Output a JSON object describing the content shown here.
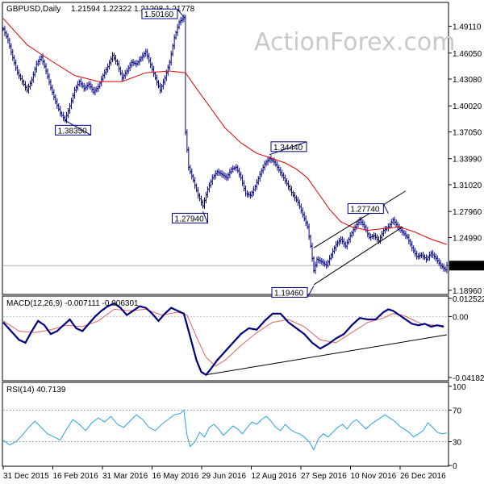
{
  "chart_data": [
    {
      "type": "ohlc",
      "panel": "price",
      "symbol": "GBPUSD,Daily",
      "ohlc_readout": [
        "1.21594",
        "1.22322",
        "1.21208",
        "1.21778"
      ],
      "watermark": "ActionForex.com",
      "ylim": [
        1.1858,
        1.5174
      ],
      "y_ticks": [
        "1.49110",
        "1.46050",
        "1.43080",
        "1.40020",
        "1.37050",
        "1.33990",
        "1.31020",
        "1.27960",
        "1.24990",
        "1.21778",
        "1.18960"
      ],
      "last_price": "1.21778",
      "x_ticks": [
        "31 Dec 2015",
        "16 Feb 2016",
        "31 Mar 2016",
        "16 May 2016",
        "29 Jun 2016",
        "12 Aug 2016",
        "27 Sep 2016",
        "10 Nov 2016",
        "26 Dec 2016"
      ],
      "close_path": [
        [
          0,
          1.488
        ],
        [
          3,
          1.475
        ],
        [
          6,
          1.455
        ],
        [
          9,
          1.438
        ],
        [
          12,
          1.428
        ],
        [
          15,
          1.418
        ],
        [
          18,
          1.43
        ],
        [
          21,
          1.448
        ],
        [
          24,
          1.456
        ],
        [
          27,
          1.44
        ],
        [
          30,
          1.421
        ],
        [
          33,
          1.405
        ],
        [
          36,
          1.392
        ],
        [
          39,
          1.384
        ],
        [
          42,
          1.4
        ],
        [
          45,
          1.418
        ],
        [
          48,
          1.428
        ],
        [
          51,
          1.42
        ],
        [
          54,
          1.425
        ],
        [
          57,
          1.416
        ],
        [
          60,
          1.422
        ],
        [
          63,
          1.435
        ],
        [
          66,
          1.445
        ],
        [
          69,
          1.458
        ],
        [
          72,
          1.448
        ],
        [
          75,
          1.432
        ],
        [
          78,
          1.44
        ],
        [
          81,
          1.45
        ],
        [
          84,
          1.448
        ],
        [
          87,
          1.455
        ],
        [
          90,
          1.462
        ],
        [
          93,
          1.447
        ],
        [
          96,
          1.432
        ],
        [
          99,
          1.418
        ],
        [
          102,
          1.432
        ],
        [
          105,
          1.45
        ],
        [
          108,
          1.478
        ],
        [
          111,
          1.496
        ],
        [
          114,
          1.501
        ],
        [
          115,
          1.37
        ],
        [
          117,
          1.33
        ],
        [
          120,
          1.315
        ],
        [
          123,
          1.298
        ],
        [
          126,
          1.286
        ],
        [
          129,
          1.305
        ],
        [
          132,
          1.318
        ],
        [
          135,
          1.325
        ],
        [
          138,
          1.322
        ],
        [
          141,
          1.318
        ],
        [
          144,
          1.328
        ],
        [
          147,
          1.33
        ],
        [
          150,
          1.318
        ],
        [
          153,
          1.3
        ],
        [
          156,
          1.298
        ],
        [
          159,
          1.308
        ],
        [
          162,
          1.322
        ],
        [
          165,
          1.334
        ],
        [
          168,
          1.34
        ],
        [
          171,
          1.336
        ],
        [
          174,
          1.327
        ],
        [
          177,
          1.318
        ],
        [
          180,
          1.308
        ],
        [
          183,
          1.298
        ],
        [
          186,
          1.29
        ],
        [
          189,
          1.276
        ],
        [
          192,
          1.262
        ],
        [
          194,
          1.24
        ],
        [
          196,
          1.212
        ],
        [
          198,
          1.225
        ],
        [
          201,
          1.222
        ],
        [
          204,
          1.218
        ],
        [
          207,
          1.23
        ],
        [
          210,
          1.242
        ],
        [
          213,
          1.248
        ],
        [
          216,
          1.24
        ],
        [
          219,
          1.252
        ],
        [
          222,
          1.262
        ],
        [
          225,
          1.27
        ],
        [
          228,
          1.262
        ],
        [
          231,
          1.25
        ],
        [
          234,
          1.252
        ],
        [
          237,
          1.246
        ],
        [
          240,
          1.258
        ],
        [
          243,
          1.262
        ],
        [
          246,
          1.27
        ],
        [
          249,
          1.262
        ],
        [
          252,
          1.256
        ],
        [
          255,
          1.25
        ],
        [
          258,
          1.238
        ],
        [
          261,
          1.228
        ],
        [
          264,
          1.23
        ],
        [
          267,
          1.225
        ],
        [
          270,
          1.232
        ],
        [
          273,
          1.226
        ],
        [
          276,
          1.218
        ],
        [
          279,
          1.213
        ],
        [
          280,
          1.218
        ]
      ],
      "ma_path": [
        [
          0,
          1.5
        ],
        [
          15,
          1.47
        ],
        [
          30,
          1.452
        ],
        [
          45,
          1.435
        ],
        [
          60,
          1.428
        ],
        [
          75,
          1.428
        ],
        [
          90,
          1.438
        ],
        [
          105,
          1.44
        ],
        [
          115,
          1.438
        ],
        [
          122,
          1.42
        ],
        [
          130,
          1.4
        ],
        [
          140,
          1.375
        ],
        [
          150,
          1.358
        ],
        [
          160,
          1.346
        ],
        [
          170,
          1.34
        ],
        [
          178,
          1.335
        ],
        [
          185,
          1.328
        ],
        [
          192,
          1.318
        ],
        [
          199,
          1.3
        ],
        [
          206,
          1.282
        ],
        [
          213,
          1.268
        ],
        [
          220,
          1.262
        ],
        [
          230,
          1.258
        ],
        [
          240,
          1.26
        ],
        [
          250,
          1.262
        ],
        [
          260,
          1.256
        ],
        [
          270,
          1.248
        ],
        [
          280,
          1.242
        ]
      ],
      "annotations": [
        {
          "text": "1.50160",
          "x": 114,
          "y": 1.5016
        },
        {
          "text": "1.38350",
          "x": 39,
          "y": 1.3835
        },
        {
          "text": "1.34440",
          "x": 168,
          "y": 1.3444
        },
        {
          "text": "1.27940",
          "x": 126,
          "y": 1.2794
        },
        {
          "text": "1.27740",
          "x": 243,
          "y": 1.2774
        },
        {
          "text": "1.19460",
          "x": 196,
          "y": 1.1946
        }
      ],
      "channel_upper": [
        [
          196,
          1.238
        ],
        [
          254,
          1.303
        ]
      ],
      "channel_lower": [
        [
          196,
          1.196
        ],
        [
          252,
          1.262
        ]
      ]
    },
    {
      "type": "line",
      "panel": "macd",
      "label": "MACD(12,26,9) -0.007111 -0.006301",
      "ylim": [
        -0.0435,
        0.0135
      ],
      "y_ticks": [
        "0.012522",
        "0.00",
        "-0.041823"
      ],
      "macd_path": [
        [
          0,
          -0.004
        ],
        [
          5,
          -0.01
        ],
        [
          10,
          -0.016
        ],
        [
          14,
          -0.018
        ],
        [
          18,
          -0.01
        ],
        [
          22,
          -0.003
        ],
        [
          26,
          -0.006
        ],
        [
          30,
          -0.012
        ],
        [
          34,
          -0.01
        ],
        [
          38,
          -0.006
        ],
        [
          42,
          -0.002
        ],
        [
          46,
          -0.008
        ],
        [
          50,
          -0.01
        ],
        [
          54,
          -0.005
        ],
        [
          58,
          0.0
        ],
        [
          62,
          0.004
        ],
        [
          66,
          0.007
        ],
        [
          70,
          0.009
        ],
        [
          74,
          0.006
        ],
        [
          78,
          0.001
        ],
        [
          82,
          0.004
        ],
        [
          86,
          0.007
        ],
        [
          90,
          0.006
        ],
        [
          94,
          0.002
        ],
        [
          98,
          -0.003
        ],
        [
          102,
          0.002
        ],
        [
          106,
          0.006
        ],
        [
          110,
          0.004
        ],
        [
          114,
          0.002
        ],
        [
          116,
          -0.006
        ],
        [
          119,
          -0.018
        ],
        [
          122,
          -0.03
        ],
        [
          125,
          -0.038
        ],
        [
          128,
          -0.04
        ],
        [
          131,
          -0.036
        ],
        [
          135,
          -0.03
        ],
        [
          140,
          -0.024
        ],
        [
          145,
          -0.018
        ],
        [
          150,
          -0.012
        ],
        [
          155,
          -0.008
        ],
        [
          160,
          -0.009
        ],
        [
          165,
          -0.003
        ],
        [
          170,
          0.002
        ],
        [
          175,
          0.002
        ],
        [
          180,
          -0.004
        ],
        [
          185,
          -0.008
        ],
        [
          190,
          -0.012
        ],
        [
          195,
          -0.018
        ],
        [
          200,
          -0.022
        ],
        [
          205,
          -0.019
        ],
        [
          210,
          -0.015
        ],
        [
          215,
          -0.012
        ],
        [
          220,
          -0.006
        ],
        [
          225,
          -0.001
        ],
        [
          230,
          -0.002
        ],
        [
          235,
          -0.002
        ],
        [
          240,
          0.003
        ],
        [
          243,
          0.005
        ],
        [
          246,
          0.004
        ],
        [
          250,
          0.001
        ],
        [
          254,
          -0.002
        ],
        [
          258,
          -0.005
        ],
        [
          262,
          -0.006
        ],
        [
          266,
          -0.005
        ],
        [
          270,
          -0.007
        ],
        [
          274,
          -0.006
        ],
        [
          278,
          -0.007
        ]
      ],
      "signal_path": [
        [
          0,
          -0.003
        ],
        [
          10,
          -0.01
        ],
        [
          20,
          -0.011
        ],
        [
          30,
          -0.009
        ],
        [
          40,
          -0.006
        ],
        [
          50,
          -0.007
        ],
        [
          60,
          -0.003
        ],
        [
          70,
          0.005
        ],
        [
          80,
          0.004
        ],
        [
          90,
          0.005
        ],
        [
          100,
          0.001
        ],
        [
          110,
          0.003
        ],
        [
          116,
          0.001
        ],
        [
          122,
          -0.014
        ],
        [
          128,
          -0.028
        ],
        [
          134,
          -0.034
        ],
        [
          140,
          -0.03
        ],
        [
          150,
          -0.02
        ],
        [
          160,
          -0.011
        ],
        [
          170,
          -0.004
        ],
        [
          180,
          -0.002
        ],
        [
          190,
          -0.007
        ],
        [
          200,
          -0.016
        ],
        [
          210,
          -0.018
        ],
        [
          220,
          -0.011
        ],
        [
          230,
          -0.004
        ],
        [
          240,
          -0.001
        ],
        [
          246,
          0.002
        ],
        [
          252,
          0.001
        ],
        [
          258,
          -0.002
        ],
        [
          264,
          -0.005
        ],
        [
          272,
          -0.006
        ],
        [
          278,
          -0.0063
        ]
      ],
      "trendline": [
        [
          128,
          -0.04
        ],
        [
          280,
          -0.0125
        ]
      ]
    },
    {
      "type": "line",
      "panel": "rsi",
      "label": "RSI(14) 40.7139",
      "ylim": [
        0,
        104
      ],
      "y_ticks": [
        "100",
        "70",
        "30",
        "0"
      ],
      "levels": [
        70,
        30
      ],
      "rsi_path": [
        [
          0,
          32
        ],
        [
          4,
          26
        ],
        [
          8,
          30
        ],
        [
          12,
          38
        ],
        [
          16,
          48
        ],
        [
          20,
          56
        ],
        [
          24,
          48
        ],
        [
          28,
          40
        ],
        [
          32,
          36
        ],
        [
          36,
          32
        ],
        [
          40,
          46
        ],
        [
          44,
          58
        ],
        [
          48,
          52
        ],
        [
          52,
          44
        ],
        [
          56,
          54
        ],
        [
          60,
          60
        ],
        [
          64,
          55
        ],
        [
          68,
          62
        ],
        [
          72,
          52
        ],
        [
          76,
          48
        ],
        [
          80,
          56
        ],
        [
          84,
          64
        ],
        [
          88,
          58
        ],
        [
          92,
          48
        ],
        [
          96,
          44
        ],
        [
          100,
          52
        ],
        [
          104,
          58
        ],
        [
          108,
          64
        ],
        [
          112,
          66
        ],
        [
          114,
          70
        ],
        [
          116,
          38
        ],
        [
          118,
          24
        ],
        [
          121,
          30
        ],
        [
          124,
          42
        ],
        [
          127,
          36
        ],
        [
          130,
          48
        ],
        [
          133,
          52
        ],
        [
          136,
          46
        ],
        [
          139,
          38
        ],
        [
          142,
          44
        ],
        [
          145,
          50
        ],
        [
          148,
          46
        ],
        [
          151,
          40
        ],
        [
          154,
          48
        ],
        [
          157,
          55
        ],
        [
          160,
          52
        ],
        [
          163,
          58
        ],
        [
          166,
          62
        ],
        [
          169,
          56
        ],
        [
          172,
          48
        ],
        [
          175,
          44
        ],
        [
          178,
          52
        ],
        [
          181,
          46
        ],
        [
          184,
          42
        ],
        [
          187,
          40
        ],
        [
          190,
          36
        ],
        [
          193,
          30
        ],
        [
          196,
          20
        ],
        [
          199,
          34
        ],
        [
          202,
          40
        ],
        [
          205,
          36
        ],
        [
          208,
          42
        ],
        [
          211,
          48
        ],
        [
          214,
          52
        ],
        [
          217,
          46
        ],
        [
          220,
          54
        ],
        [
          223,
          58
        ],
        [
          226,
          52
        ],
        [
          229,
          46
        ],
        [
          232,
          52
        ],
        [
          235,
          56
        ],
        [
          238,
          60
        ],
        [
          241,
          64
        ],
        [
          244,
          60
        ],
        [
          247,
          56
        ],
        [
          250,
          50
        ],
        [
          253,
          46
        ],
        [
          256,
          42
        ],
        [
          259,
          36
        ],
        [
          262,
          40
        ],
        [
          265,
          44
        ],
        [
          268,
          54
        ],
        [
          271,
          48
        ],
        [
          274,
          42
        ],
        [
          277,
          40
        ],
        [
          280,
          41
        ]
      ]
    }
  ]
}
